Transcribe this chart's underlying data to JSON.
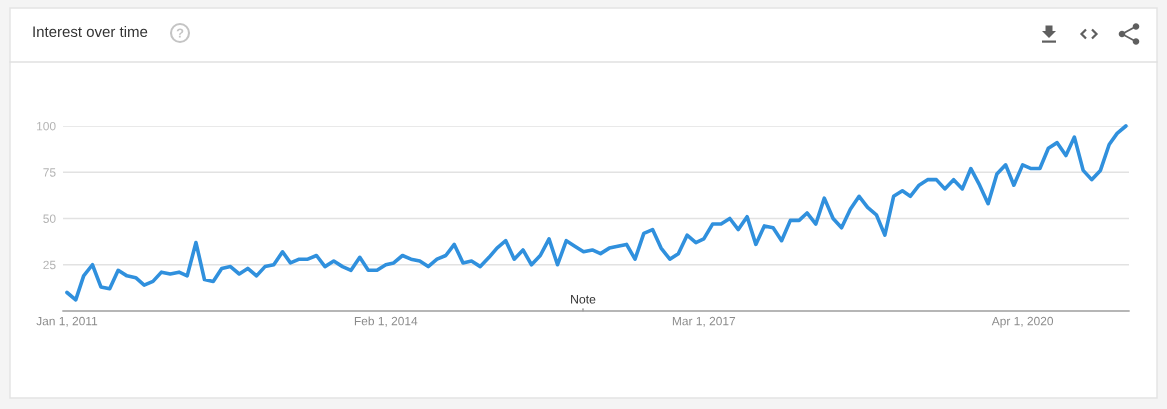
{
  "chart_data": {
    "type": "line",
    "title": "Interest over time",
    "x": [
      "2011-01",
      "2011-02",
      "2011-03",
      "2011-04",
      "2011-05",
      "2011-06",
      "2011-07",
      "2011-08",
      "2011-09",
      "2011-10",
      "2011-11",
      "2011-12",
      "2012-01",
      "2012-02",
      "2012-03",
      "2012-04",
      "2012-05",
      "2012-06",
      "2012-07",
      "2012-08",
      "2012-09",
      "2012-10",
      "2012-11",
      "2012-12",
      "2013-01",
      "2013-02",
      "2013-03",
      "2013-04",
      "2013-05",
      "2013-06",
      "2013-07",
      "2013-08",
      "2013-09",
      "2013-10",
      "2013-11",
      "2013-12",
      "2014-01",
      "2014-02",
      "2014-03",
      "2014-04",
      "2014-05",
      "2014-06",
      "2014-07",
      "2014-08",
      "2014-09",
      "2014-10",
      "2014-11",
      "2014-12",
      "2015-01",
      "2015-02",
      "2015-03",
      "2015-04",
      "2015-05",
      "2015-06",
      "2015-07",
      "2015-08",
      "2015-09",
      "2015-10",
      "2015-11",
      "2015-12",
      "2016-01",
      "2016-02",
      "2016-03",
      "2016-04",
      "2016-05",
      "2016-06",
      "2016-07",
      "2016-08",
      "2016-09",
      "2016-10",
      "2016-11",
      "2016-12",
      "2017-01",
      "2017-02",
      "2017-03",
      "2017-04",
      "2017-05",
      "2017-06",
      "2017-07",
      "2017-08",
      "2017-09",
      "2017-10",
      "2017-11",
      "2017-12",
      "2018-01",
      "2018-02",
      "2018-03",
      "2018-04",
      "2018-05",
      "2018-06",
      "2018-07",
      "2018-08",
      "2018-09",
      "2018-10",
      "2018-11",
      "2018-12",
      "2019-01",
      "2019-02",
      "2019-03",
      "2019-04",
      "2019-05",
      "2019-06",
      "2019-07",
      "2019-08",
      "2019-09",
      "2019-10",
      "2019-11",
      "2019-12",
      "2020-01",
      "2020-02",
      "2020-03",
      "2020-04",
      "2020-05",
      "2020-06",
      "2020-07",
      "2020-08",
      "2020-09",
      "2020-10",
      "2020-11",
      "2020-12",
      "2021-01",
      "2021-02",
      "2021-03",
      "2021-04"
    ],
    "series": [
      {
        "color": "#3090dd",
        "values": [
          10,
          6,
          19,
          25,
          13,
          12,
          22,
          19,
          18,
          14,
          16,
          21,
          20,
          21,
          19,
          37,
          17,
          16,
          23,
          24,
          20,
          23,
          19,
          24,
          25,
          32,
          26,
          28,
          28,
          30,
          24,
          27,
          24,
          22,
          29,
          22,
          22,
          25,
          26,
          30,
          28,
          27,
          24,
          28,
          30,
          36,
          26,
          27,
          24,
          29,
          34,
          38,
          28,
          33,
          25,
          30,
          39,
          25,
          38,
          35,
          32,
          33,
          31,
          34,
          35,
          36,
          28,
          42,
          44,
          34,
          28,
          31,
          41,
          37,
          39,
          47,
          47,
          50,
          44,
          51,
          36,
          46,
          45,
          38,
          49,
          49,
          53,
          47,
          61,
          50,
          45,
          55,
          62,
          56,
          52,
          41,
          62,
          65,
          62,
          68,
          71,
          71,
          66,
          71,
          66,
          77,
          68,
          58,
          74,
          79,
          68,
          79,
          77,
          77,
          88,
          91,
          84,
          94,
          76,
          71,
          76,
          90,
          96,
          100
        ]
      }
    ],
    "xlim": [
      "2010-12-18",
      "2021-04-12"
    ],
    "xticks": [
      {
        "value": "2011-01-01",
        "label": "Jan 1, 2011"
      },
      {
        "value": "2014-02-01",
        "label": "Feb 1, 2014"
      },
      {
        "value": "2017-03-01",
        "label": "Mar 1, 2017"
      },
      {
        "value": "2020-04-01",
        "label": "Apr 1, 2020"
      }
    ],
    "ylim": [
      0,
      100
    ],
    "yticks": [
      25,
      50,
      75,
      100
    ],
    "grid": "y",
    "marker": "none",
    "line_style": "solid",
    "annotations": [
      "Note"
    ]
  }
}
